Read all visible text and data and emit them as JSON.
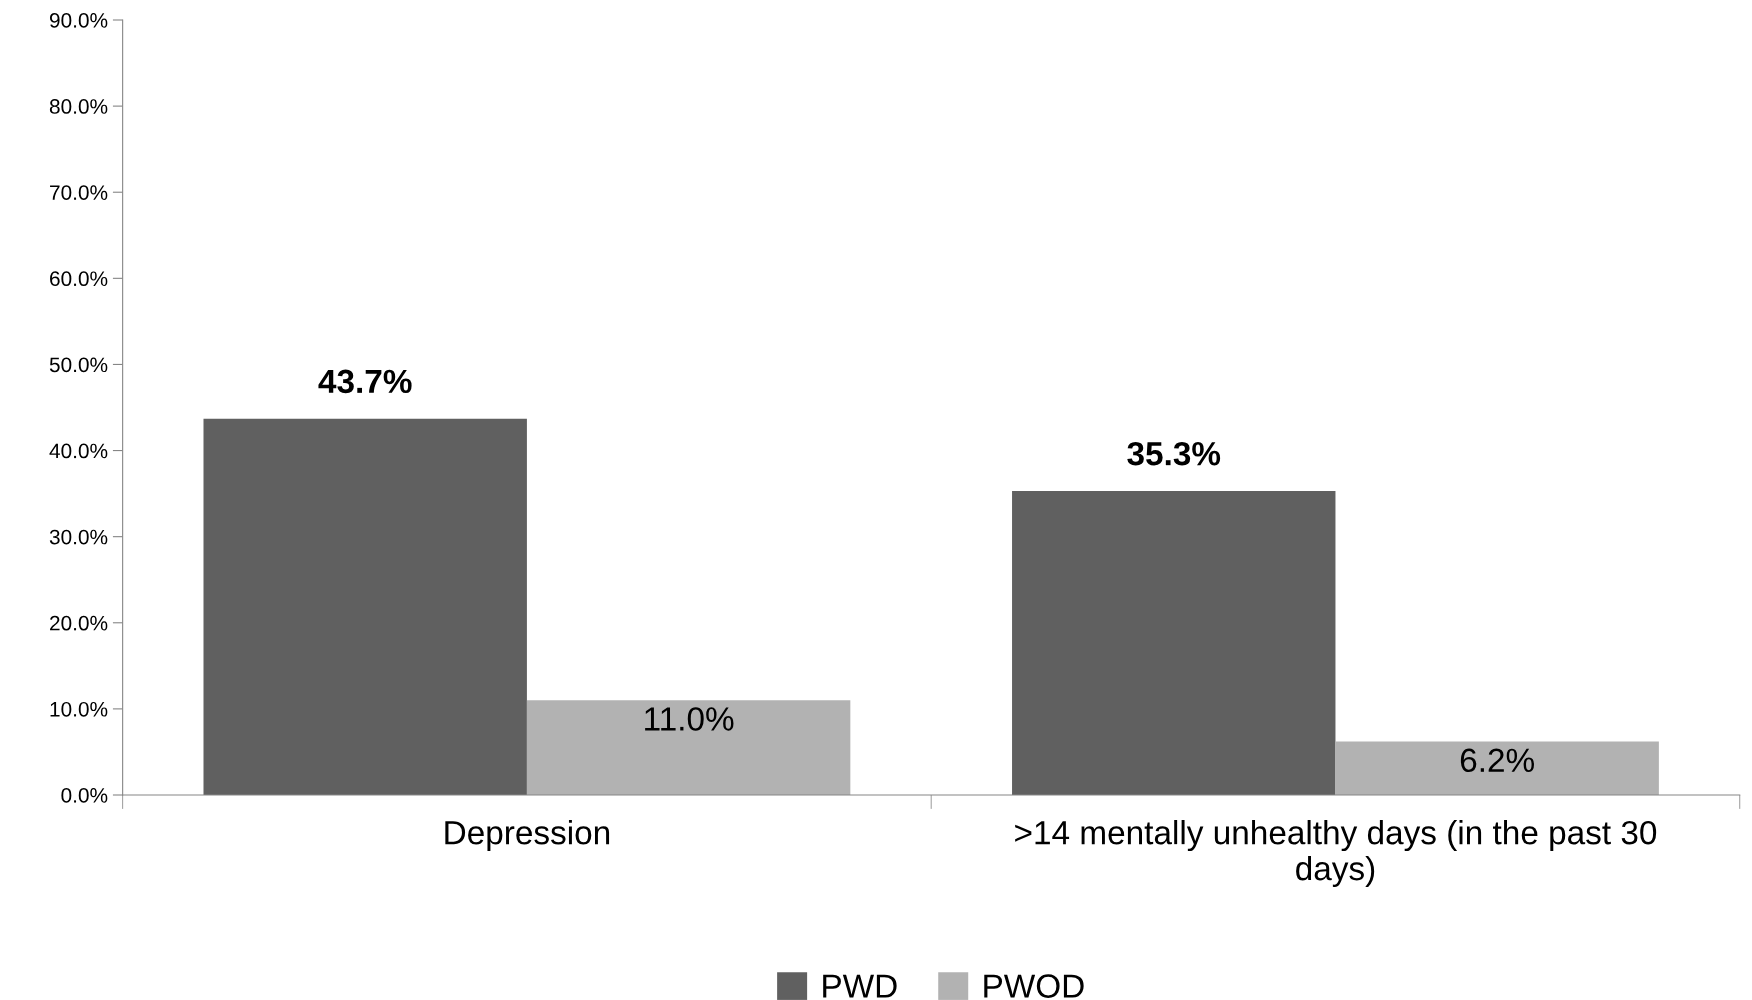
{
  "chart_data": {
    "type": "bar",
    "categories": [
      "Depression",
      ">14 mentally unhealthy days (in the past 30 days)"
    ],
    "series": [
      {
        "name": "PWD",
        "color": "#606060",
        "values": [
          43.7,
          35.3
        ],
        "value_labels": [
          "43.7%",
          "35.3%"
        ]
      },
      {
        "name": "PWOD",
        "color": "#b2b2b2",
        "values": [
          11.0,
          6.2
        ],
        "value_labels": [
          "11.0%",
          "6.2%"
        ]
      }
    ],
    "ylim": [
      0,
      90
    ],
    "yticks": [
      {
        "value": 0,
        "label": "0.0%"
      },
      {
        "value": 10,
        "label": "10.0%"
      },
      {
        "value": 20,
        "label": "20.0%"
      },
      {
        "value": 30,
        "label": "30.0%"
      },
      {
        "value": 40,
        "label": "40.0%"
      },
      {
        "value": 50,
        "label": "50.0%"
      },
      {
        "value": 60,
        "label": "60.0%"
      },
      {
        "value": 70,
        "label": "70.0%"
      },
      {
        "value": 80,
        "label": "80.0%"
      },
      {
        "value": 90,
        "label": "90.0%"
      }
    ],
    "grid": false,
    "legend": "bottom"
  }
}
